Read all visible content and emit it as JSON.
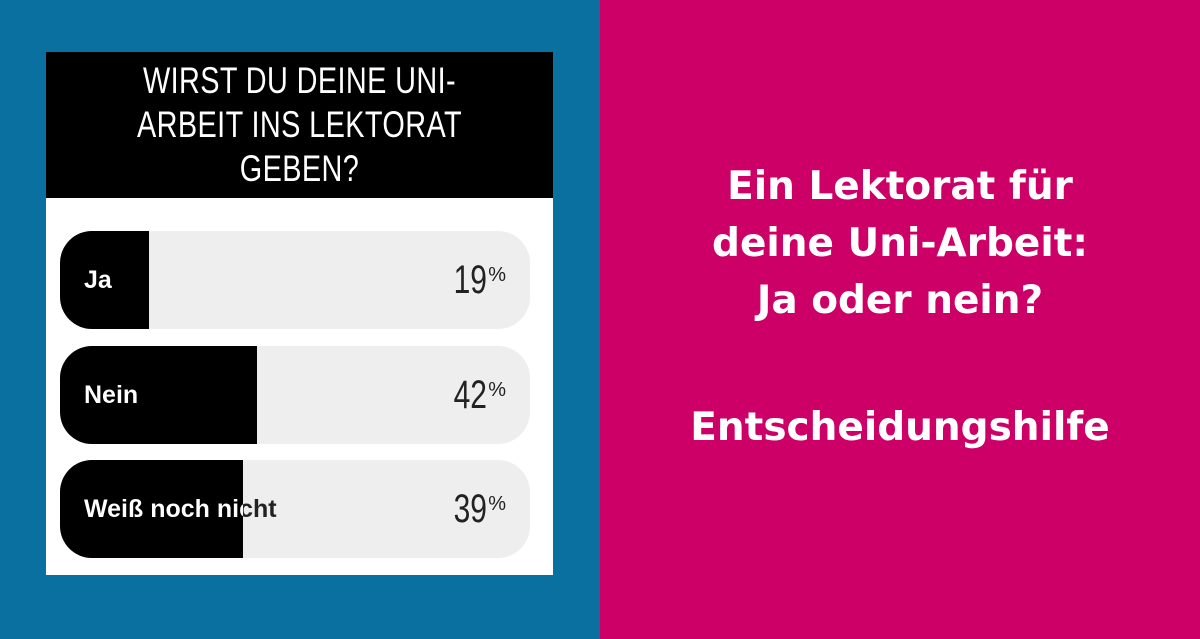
{
  "poll": {
    "question": "WIRST DU DEINE UNI-ARBEIT INS LEKTORAT GEBEN?",
    "options": [
      {
        "label": "Ja",
        "percent": 19,
        "percent_text": "19"
      },
      {
        "label": "Nein",
        "percent": 42,
        "percent_text": "42"
      },
      {
        "label": "Weiß noch nicht",
        "percent": 39,
        "percent_text": "39"
      }
    ],
    "percent_symbol": "%"
  },
  "headline": {
    "lines": [
      "Ein Lektorat für",
      "deine Uni-Arbeit:",
      "Ja oder nein?"
    ],
    "subtitle": "Entscheidungshilfe"
  },
  "colors": {
    "left_bg": "#0a70a0",
    "right_bg": "#cc0066",
    "bar_fill": "#000000",
    "bar_track": "#eeeeee"
  }
}
